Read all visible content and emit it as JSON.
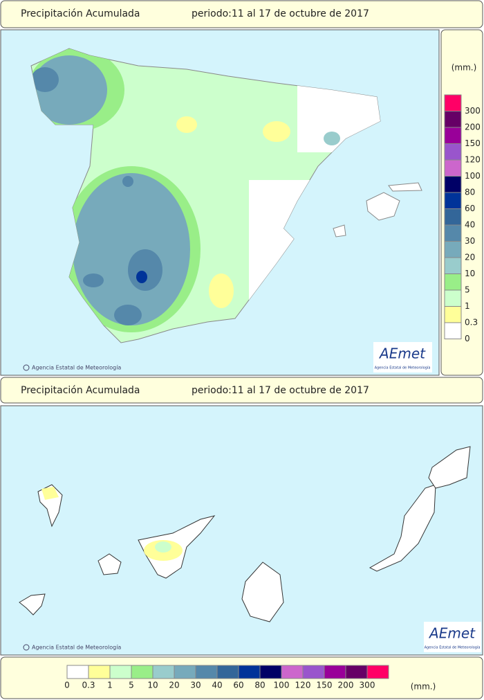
{
  "header": {
    "title": "Precipitación Acumulada",
    "period": "periodo:11 al 17 de octubre de 2017"
  },
  "peninsula": {
    "credit": "Agencia Estatal de Meteorología",
    "logo": "AEmet",
    "logo_subtitle": "Agencia Estatal de Meteorología"
  },
  "canarias_header": {
    "title": "Precipitación Acumulada",
    "period": "periodo:11 al 17 de octubre de 2017"
  },
  "canarias": {
    "credit": "Agencia Estatal de Meteorología",
    "logo": "AEmet",
    "logo_subtitle": "Agencia Estatal de Meteorología"
  },
  "legend": {
    "unit": "(mm.)",
    "levels": [
      {
        "value": 0,
        "color": "#ffffff"
      },
      {
        "value": 0.3,
        "color": "#ffff99"
      },
      {
        "value": 1,
        "color": "#ccffcc"
      },
      {
        "value": 5,
        "color": "#99ee88"
      },
      {
        "value": 10,
        "color": "#99cccc"
      },
      {
        "value": 20,
        "color": "#77aabb"
      },
      {
        "value": 30,
        "color": "#5588aa"
      },
      {
        "value": 40,
        "color": "#336699"
      },
      {
        "value": 60,
        "color": "#003399"
      },
      {
        "value": 80,
        "color": "#000066"
      },
      {
        "value": 100,
        "color": "#cc66cc"
      },
      {
        "value": 120,
        "color": "#9955cc"
      },
      {
        "value": 150,
        "color": "#990099"
      },
      {
        "value": 200,
        "color": "#660066"
      },
      {
        "value": 300,
        "color": "#ff0066"
      }
    ]
  }
}
